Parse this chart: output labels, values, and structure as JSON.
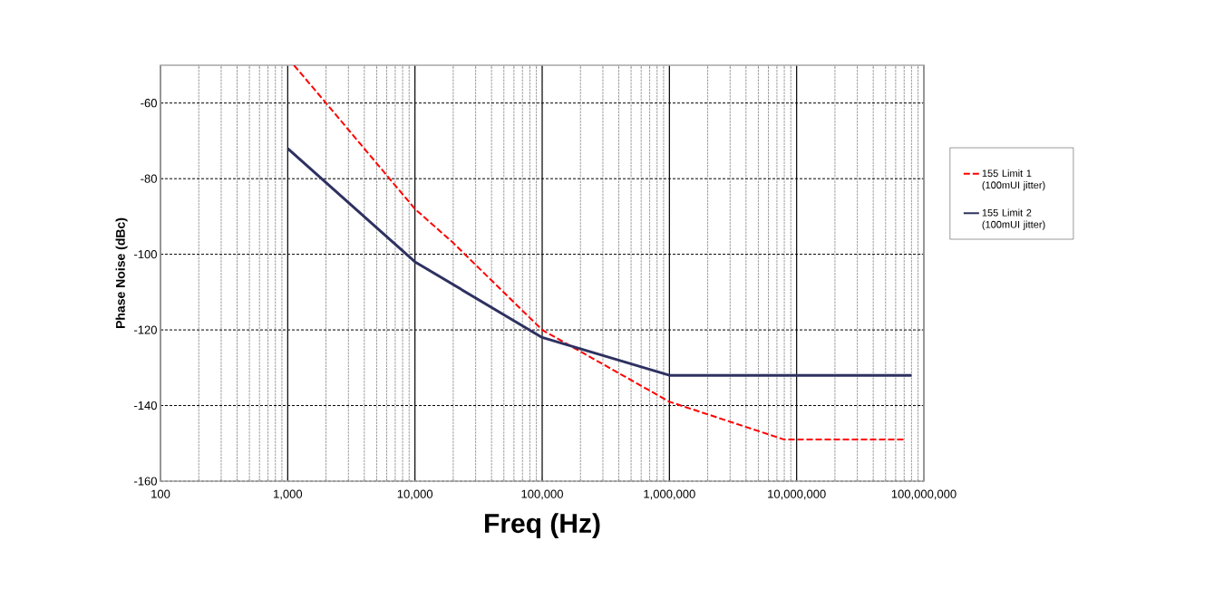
{
  "chart_data": {
    "type": "line",
    "xlabel": "Freq (Hz)",
    "ylabel": "Phase Noise (dBc)",
    "log": "x",
    "grid": true,
    "legend": "right",
    "xlim": [
      100,
      100000000
    ],
    "xticks": [
      100,
      {
        "value": 1000,
        "label": "1,000"
      },
      {
        "value": 10000,
        "label": "10,000"
      },
      {
        "value": 100000,
        "label": "100,000"
      },
      {
        "value": 1000000,
        "label": "1,000,000"
      },
      {
        "value": 10000000,
        "label": "10,000,000"
      },
      {
        "value": 100000000,
        "label": "100,000,000"
      }
    ],
    "ylim": [
      -160,
      -50
    ],
    "yticks": [
      -160,
      -140,
      -120,
      -100,
      -80,
      -60
    ],
    "series": [
      {
        "name": "155 Limit 1 (100mUI jitter)",
        "color": "#ff0000",
        "line_style": "dashed",
        "x": [
          1120,
          2000,
          10000,
          20000,
          100000,
          1000000,
          8000000,
          70000000
        ],
        "values": [
          -50,
          -60,
          -88,
          -97,
          -120,
          -139,
          -149,
          -149
        ]
      },
      {
        "name": "155 Limit 2 (100mUI jitter)",
        "color": "#2e3160",
        "line_style": "solid",
        "x": [
          1000,
          10000,
          100000,
          1000000,
          80000000
        ],
        "values": [
          -72,
          -102,
          -122,
          -132,
          -132
        ]
      }
    ]
  }
}
